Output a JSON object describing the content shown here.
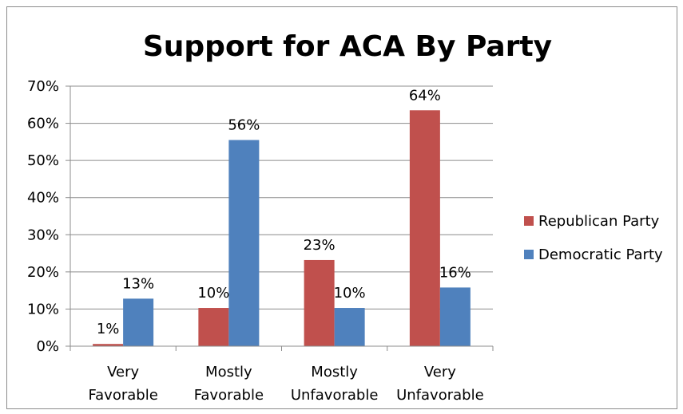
{
  "chart_data": {
    "type": "bar",
    "title": "Support for ACA By Party",
    "categories": [
      [
        "Very",
        "Favorable"
      ],
      [
        "Mostly",
        "Favorable"
      ],
      [
        "Mostly",
        "Unfavorable"
      ],
      [
        "Very",
        "Unfavorable"
      ]
    ],
    "series": [
      {
        "name": "Republican Party",
        "color": "#c0504d",
        "values": [
          0.6,
          10.3,
          23.2,
          63.5
        ],
        "labels": [
          "1%",
          "10%",
          "23%",
          "64%"
        ]
      },
      {
        "name": "Democratic Party",
        "color": "#4f81bd",
        "values": [
          12.8,
          55.5,
          10.3,
          15.8
        ],
        "labels": [
          "13%",
          "56%",
          "10%",
          "16%"
        ]
      }
    ],
    "ylim": [
      0,
      70
    ],
    "yticks": [
      0,
      10,
      20,
      30,
      40,
      50,
      60,
      70
    ],
    "ytick_labels": [
      "0%",
      "10%",
      "20%",
      "30%",
      "40%",
      "50%",
      "60%",
      "70%"
    ],
    "grid": true,
    "legend": "right",
    "xlabel": "",
    "ylabel": ""
  }
}
